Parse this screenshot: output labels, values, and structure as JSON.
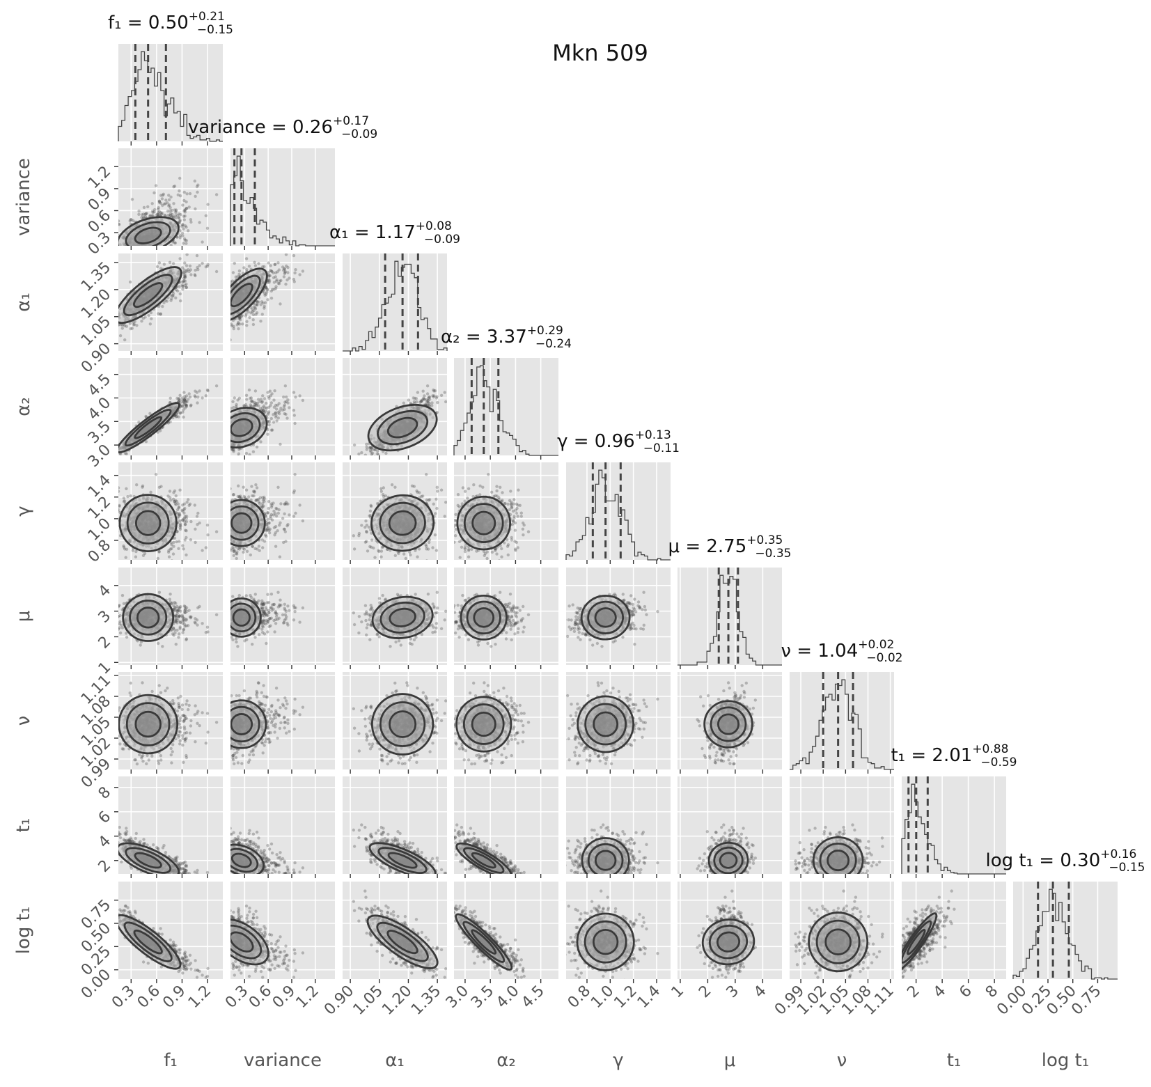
{
  "chart_data": {
    "type": "corner",
    "title": "Mkn 509",
    "grid": true,
    "quantiles": [
      0.16,
      0.5,
      0.84
    ],
    "parameters": [
      {
        "label": "f₁",
        "title": "f₁ = 0.50",
        "median": 0.5,
        "err_plus": "+0.21",
        "err_minus": "−0.15",
        "range": [
          0.15,
          1.38
        ],
        "ticks": [
          0.3,
          0.6,
          0.9,
          1.2
        ],
        "tick_labels": [
          "0.3",
          "0.6",
          "0.9",
          "1.2"
        ]
      },
      {
        "label": "variance",
        "title": "variance = 0.26",
        "median": 0.26,
        "err_plus": "+0.17",
        "err_minus": "−0.09",
        "range": [
          0.12,
          1.45
        ],
        "ticks": [
          0.3,
          0.6,
          0.9,
          1.2
        ],
        "tick_labels": [
          "0.3",
          "0.6",
          "0.9",
          "1.2"
        ]
      },
      {
        "label": "α₁",
        "title": "α₁ = 1.17",
        "median": 1.17,
        "err_plus": "+0.08",
        "err_minus": "−0.09",
        "range": [
          0.86,
          1.4
        ],
        "ticks": [
          0.9,
          1.05,
          1.2,
          1.35
        ],
        "tick_labels": [
          "0.90",
          "1.05",
          "1.20",
          "1.35"
        ]
      },
      {
        "label": "α₂",
        "title": "α₂ = 3.37",
        "median": 3.37,
        "err_plus": "+0.29",
        "err_minus": "−0.24",
        "range": [
          2.78,
          4.85
        ],
        "ticks": [
          3.0,
          3.5,
          4.0,
          4.5
        ],
        "tick_labels": [
          "3.0",
          "3.5",
          "4.0",
          "4.5"
        ]
      },
      {
        "label": "γ",
        "title": "γ = 0.96",
        "median": 0.96,
        "err_plus": "+0.13",
        "err_minus": "−0.11",
        "range": [
          0.62,
          1.52
        ],
        "ticks": [
          0.8,
          1.0,
          1.2,
          1.4
        ],
        "tick_labels": [
          "0.8",
          "1.0",
          "1.2",
          "1.4"
        ]
      },
      {
        "label": "μ",
        "title": "μ = 2.75",
        "median": 2.75,
        "err_plus": "+0.35",
        "err_minus": "−0.35",
        "range": [
          0.9,
          4.7
        ],
        "ticks": [
          1,
          2,
          3,
          4
        ],
        "tick_labels": [
          "1",
          "2",
          "3",
          "4"
        ]
      },
      {
        "label": "ν",
        "title": "ν = 1.04",
        "median": 1.04,
        "err_plus": "+0.02",
        "err_minus": "−0.02",
        "range": [
          0.975,
          1.115
        ],
        "ticks": [
          0.99,
          1.02,
          1.05,
          1.08,
          1.11
        ],
        "tick_labels": [
          "0.99",
          "1.02",
          "1.05",
          "1.08",
          "1.11"
        ]
      },
      {
        "label": "t₁",
        "title": "t₁ = 2.01",
        "median": 2.01,
        "err_plus": "+0.88",
        "err_minus": "−0.59",
        "range": [
          0.9,
          8.9
        ],
        "ticks": [
          2,
          4,
          6,
          8
        ],
        "tick_labels": [
          "2",
          "4",
          "6",
          "8"
        ]
      },
      {
        "label": "log t₁",
        "title": "log t₁ = 0.30",
        "median": 0.3,
        "err_plus": "+0.16",
        "err_minus": "−0.15",
        "range": [
          -0.1,
          0.95
        ],
        "ticks": [
          0.0,
          0.25,
          0.5,
          0.75
        ],
        "tick_labels": [
          "0.00",
          "0.25",
          "0.50",
          "0.75"
        ]
      }
    ],
    "correlations": [
      [
        1,
        0.55,
        0.8,
        0.95,
        0.0,
        0.0,
        0.0,
        -0.75,
        -0.85
      ],
      [
        0.55,
        1,
        0.7,
        0.3,
        0.0,
        0.0,
        0.0,
        -0.45,
        -0.5
      ],
      [
        0.8,
        0.7,
        1,
        0.5,
        0.1,
        0.3,
        0.0,
        -0.8,
        -0.8
      ],
      [
        0.95,
        0.3,
        0.5,
        1,
        0.0,
        0.0,
        0.0,
        -0.85,
        -0.92
      ],
      [
        0.0,
        0.0,
        0.1,
        0.0,
        1,
        0.05,
        0.0,
        0.0,
        0.0
      ],
      [
        0.0,
        0.0,
        0.3,
        0.0,
        0.05,
        1,
        0.0,
        0.1,
        0.1
      ],
      [
        0.0,
        0.0,
        0.0,
        0.0,
        0.0,
        0.0,
        1,
        0.0,
        0.0
      ],
      [
        -0.75,
        -0.45,
        -0.8,
        -0.85,
        0.0,
        0.1,
        0.0,
        1,
        0.97
      ],
      [
        -0.85,
        -0.5,
        -0.8,
        -0.92,
        0.0,
        0.1,
        0.0,
        0.97,
        1
      ]
    ]
  }
}
